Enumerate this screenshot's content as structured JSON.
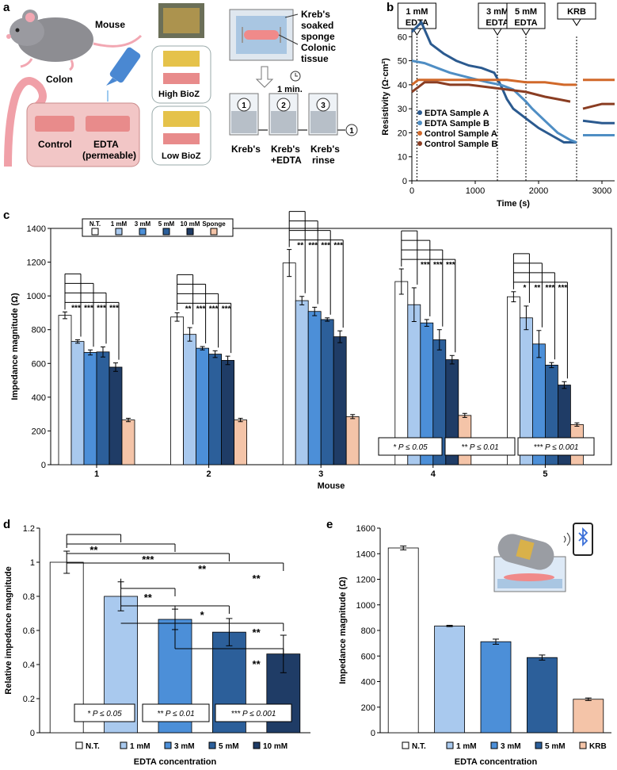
{
  "panels": {
    "a": {
      "letter": "a",
      "mouse_label": "Mouse",
      "colon_label": "Colon",
      "control_label": "Control",
      "edta_label": "EDTA",
      "permeable_label": "(permeable)",
      "high_bioz_label": "High BioZ",
      "low_bioz_label": "Low BioZ",
      "sponge_label_1": "Kreb's",
      "sponge_label_2": "soaked",
      "sponge_label_3": "sponge",
      "tissue_label_1": "Colonic",
      "tissue_label_2": "tissue",
      "timer_label": "1 min.",
      "steps": [
        {
          "num": "1",
          "label_1": "Kreb's",
          "label_2": ""
        },
        {
          "num": "2",
          "label_1": "Kreb's",
          "label_2": "+EDTA"
        },
        {
          "num": "3",
          "label_1": "Kreb's",
          "label_2": "rinse"
        }
      ],
      "loop_num": "1"
    },
    "b": {
      "letter": "b"
    },
    "c": {
      "letter": "c"
    },
    "d": {
      "letter": "d"
    },
    "e": {
      "letter": "e"
    }
  },
  "colors": {
    "nt": "#ffffff",
    "c1": "#a9c9ee",
    "c3": "#4c8fd8",
    "c5": "#2c5f9a",
    "c10": "#1f3c66",
    "sponge": "#f4c4a8",
    "edta_a": "#2b5a8f",
    "edta_b": "#4f8ec4",
    "ctrl_a": "#d1692a",
    "ctrl_b": "#8a3d22"
  },
  "chart_data": [
    {
      "id": "b",
      "type": "line",
      "title": "",
      "xlabel": "Time (s)",
      "ylabel": "Resistivity (Ω·cm²)",
      "xlim": [
        0,
        3200
      ],
      "ylim": [
        0,
        70
      ],
      "xticks": [
        0,
        1000,
        2000,
        3000
      ],
      "yticks": [
        0,
        10,
        20,
        30,
        40,
        50,
        60,
        70
      ],
      "annotations": [
        {
          "label_1": "1 mM",
          "label_2": "EDTA",
          "x": 80
        },
        {
          "label_1": "3 mM",
          "label_2": "EDTA",
          "x": 1350
        },
        {
          "label_1": "5 mM",
          "label_2": "EDTA",
          "x": 1800
        },
        {
          "label_1": "KRB",
          "label_2": "",
          "x": 2600
        }
      ],
      "series": [
        {
          "name": "EDTA Sample A",
          "color_key": "edta_a",
          "segments": [
            {
              "x": [
                0,
                150,
                300,
                500,
                700,
                900,
                1100,
                1300,
                1400,
                1500,
                1600,
                1800,
                2000,
                2200,
                2400,
                2600
              ],
              "y": [
                62,
                66,
                57,
                53,
                50,
                48,
                47,
                45,
                40,
                34,
                30,
                26,
                22,
                19,
                16,
                16
              ]
            },
            {
              "x": [
                2700,
                3000,
                3200
              ],
              "y": [
                25,
                24,
                24
              ]
            }
          ]
        },
        {
          "name": "EDTA Sample B",
          "color_key": "edta_b",
          "segments": [
            {
              "x": [
                0,
                200,
                400,
                600,
                900,
                1200,
                1400,
                1600,
                1800,
                1900,
                2100,
                2300,
                2500,
                2600
              ],
              "y": [
                50,
                49,
                47,
                45,
                43,
                41,
                40,
                38,
                33,
                30,
                25,
                20,
                17,
                16
              ]
            },
            {
              "x": [
                2700,
                3000,
                3200
              ],
              "y": [
                19,
                19,
                19
              ]
            }
          ]
        },
        {
          "name": "Control Sample A",
          "color_key": "ctrl_a",
          "segments": [
            {
              "x": [
                0,
                100,
                300,
                600,
                900,
                1200,
                1500,
                1800,
                2100,
                2400,
                2600
              ],
              "y": [
                40,
                42,
                42,
                42,
                42,
                42,
                42,
                41,
                41,
                40,
                40
              ]
            },
            {
              "x": [
                2700,
                3000,
                3200
              ],
              "y": [
                42,
                42,
                42
              ]
            }
          ]
        },
        {
          "name": "Control Sample B",
          "color_key": "ctrl_b",
          "segments": [
            {
              "x": [
                0,
                100,
                200,
                400,
                600,
                900,
                1200,
                1500,
                1800,
                2100,
                2300,
                2500
              ],
              "y": [
                37,
                39,
                41,
                41,
                40,
                40,
                39,
                38,
                37,
                35,
                34,
                33
              ]
            },
            {
              "x": [
                2700,
                3000,
                3200
              ],
              "y": [
                30,
                32,
                32
              ]
            }
          ]
        }
      ]
    },
    {
      "id": "c",
      "type": "bar",
      "xlabel": "Mouse",
      "ylabel": "Impedance magnitude (Ω)",
      "ylim": [
        0,
        1400
      ],
      "yticks": [
        0,
        200,
        400,
        600,
        800,
        1000,
        1200,
        1400
      ],
      "categories": [
        "1",
        "2",
        "3",
        "4",
        "5"
      ],
      "legend": [
        "N.T.",
        "1 mM",
        "3 mM",
        "5 mM",
        "10 mM",
        "Sponge"
      ],
      "series_colors": [
        "nt",
        "c1",
        "c3",
        "c5",
        "c10",
        "sponge"
      ],
      "values": [
        [
          885,
          730,
          665,
          668,
          578,
          265
        ],
        [
          875,
          772,
          690,
          655,
          618,
          265
        ],
        [
          1195,
          972,
          908,
          860,
          758,
          285
        ],
        [
          1085,
          948,
          840,
          740,
          622,
          292
        ],
        [
          995,
          870,
          715,
          590,
          472,
          238
        ]
      ],
      "errors": [
        [
          20,
          10,
          15,
          30,
          25,
          10
        ],
        [
          25,
          40,
          10,
          20,
          25,
          10
        ],
        [
          80,
          25,
          25,
          10,
          35,
          12
        ],
        [
          75,
          100,
          20,
          60,
          25,
          12
        ],
        [
          30,
          70,
          80,
          15,
          20,
          10
        ]
      ],
      "significance": [
        [
          "***",
          "***",
          "***",
          "***"
        ],
        [
          "**",
          "***",
          "***",
          "***"
        ],
        [
          "**",
          "***",
          "***",
          "***"
        ],
        [
          "",
          "***",
          "***",
          "***"
        ],
        [
          "*",
          "**",
          "***",
          "***"
        ]
      ],
      "pvalue_notes": [
        "* P ≤ 0.05",
        "** P ≤ 0.01",
        "*** P ≤ 0.001"
      ]
    },
    {
      "id": "d",
      "type": "bar",
      "xlabel": "EDTA concentration",
      "ylabel": "Relative impedance magnitude",
      "ylim": [
        0,
        1.2
      ],
      "yticks": [
        0,
        0.2,
        0.4,
        0.6,
        0.8,
        1,
        1.2
      ],
      "categories": [
        "N.T.",
        "1 mM",
        "3 mM",
        "5 mM",
        "10 mM"
      ],
      "series_colors": [
        "nt",
        "c1",
        "c3",
        "c5",
        "c10"
      ],
      "values": [
        1.0,
        0.8,
        0.665,
        0.59,
        0.462
      ],
      "errors": [
        0.065,
        0.085,
        0.06,
        0.08,
        0.11
      ],
      "brackets": [
        {
          "from": 0,
          "to": 1,
          "label": "**"
        },
        {
          "from": 0,
          "to": 2,
          "label": "***"
        },
        {
          "from": 0,
          "to": 3,
          "label": "**"
        },
        {
          "from": 0,
          "to": 4,
          "label": "**"
        },
        {
          "from": 1,
          "to": 2,
          "label": "**"
        },
        {
          "from": 1,
          "to": 3,
          "label": "*"
        },
        {
          "from": 1,
          "to": 4,
          "label": "**"
        },
        {
          "from": 2,
          "to": 4,
          "label": "**"
        }
      ],
      "pvalue_notes": [
        "* P ≤ 0.05",
        "** P ≤ 0.01",
        "*** P ≤ 0.001"
      ]
    },
    {
      "id": "e",
      "type": "bar",
      "xlabel": "EDTA concentration",
      "ylabel": "Impedance magnitude (Ω)",
      "ylim": [
        0,
        1600
      ],
      "yticks": [
        0,
        200,
        400,
        600,
        800,
        1000,
        1200,
        1400,
        1600
      ],
      "categories": [
        "N.T.",
        "1 mM",
        "3 mM",
        "5 mM",
        "KRB"
      ],
      "series_colors": [
        "nt",
        "c1",
        "c3",
        "c5",
        "sponge"
      ],
      "values": [
        1445,
        835,
        712,
        588,
        262
      ],
      "errors": [
        15,
        5,
        20,
        20,
        10
      ]
    }
  ]
}
